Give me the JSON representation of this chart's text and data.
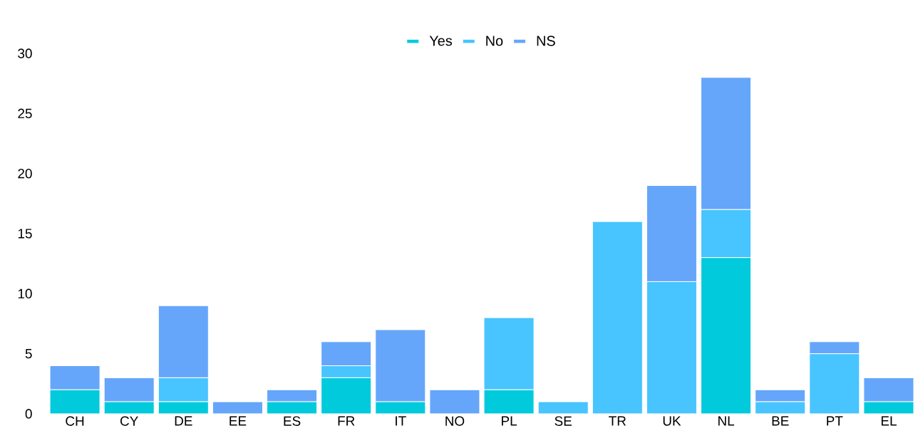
{
  "chart_data": {
    "type": "bar",
    "stacked": true,
    "legend": "top",
    "categories": [
      "CH",
      "CY",
      "DE",
      "EE",
      "ES",
      "FR",
      "IT",
      "NO",
      "PL",
      "SE",
      "TR",
      "UK",
      "NL",
      "BE",
      "PT",
      "EL"
    ],
    "series": [
      {
        "name": "Yes",
        "color": "#00cadb",
        "values": [
          2,
          1,
          1,
          0,
          1,
          3,
          1,
          0,
          2,
          0,
          0,
          0,
          13,
          0,
          0,
          1
        ]
      },
      {
        "name": "No",
        "color": "#48c4fe",
        "values": [
          0,
          0,
          2,
          0,
          0,
          1,
          0,
          0,
          6,
          1,
          16,
          11,
          4,
          1,
          5,
          0
        ]
      },
      {
        "name": "NS",
        "color": "#65a6fa",
        "values": [
          2,
          2,
          6,
          1,
          1,
          2,
          6,
          2,
          0,
          0,
          0,
          8,
          11,
          1,
          1,
          2
        ]
      }
    ],
    "ylim": [
      0,
      30
    ],
    "yticks": [
      0,
      5,
      10,
      15,
      20,
      25,
      30
    ]
  }
}
